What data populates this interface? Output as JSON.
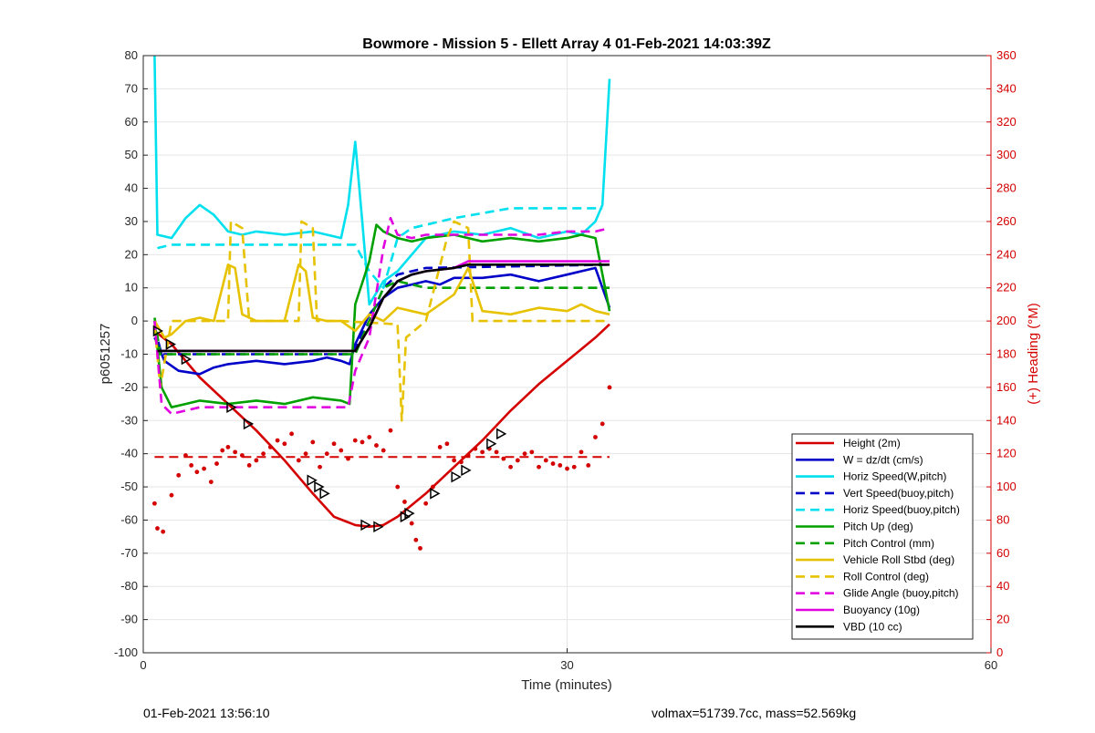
{
  "chart_data": {
    "type": "line",
    "title": "Bowmore - Mission 5 - Ellett Array 4 01-Feb-2021 14:03:39Z",
    "xlabel": "Time (minutes)",
    "ylabel": "p6051257",
    "y2label": "(+) Heading (°M)",
    "xlim": [
      0,
      60
    ],
    "ylim": [
      -100,
      80
    ],
    "y2lim": [
      0,
      360
    ],
    "xticks": [
      0,
      30,
      60
    ],
    "yticks": [
      80,
      70,
      60,
      50,
      40,
      30,
      20,
      10,
      0,
      -10,
      -20,
      -30,
      -40,
      -50,
      -60,
      -70,
      -80,
      -90,
      -100
    ],
    "y2ticks": [
      360,
      340,
      320,
      300,
      280,
      260,
      240,
      220,
      200,
      180,
      160,
      140,
      120,
      100,
      80,
      60,
      40,
      20,
      0
    ],
    "grid": true,
    "legend_position": "bottom-right",
    "series": [
      {
        "name": "Height (2m)",
        "color": "#d40000",
        "style": "solid",
        "x": [
          0.8,
          2,
          4,
          6,
          8,
          10,
          12,
          13.5,
          15,
          16,
          17,
          18,
          20,
          22,
          24,
          26,
          28,
          30,
          32,
          33
        ],
        "y": [
          -3,
          -7,
          -17,
          -25,
          -33,
          -42,
          -52,
          -59,
          -61.5,
          -62,
          -61.5,
          -59,
          -52,
          -44,
          -36,
          -27,
          -19,
          -12,
          -5,
          -1
        ]
      },
      {
        "name": "W = dz/dt (cm/s)",
        "color": "#0000c8",
        "style": "solid",
        "x": [
          0.8,
          1.5,
          2.5,
          4,
          5,
          6,
          8,
          10,
          12,
          13,
          14,
          14.6,
          15,
          16,
          17,
          18,
          19,
          20,
          21,
          22,
          24,
          26,
          28,
          30,
          31,
          32,
          33
        ],
        "y": [
          -5,
          -12,
          -15,
          -16,
          -14,
          -13,
          -12,
          -13,
          -12,
          -11,
          -12,
          -13,
          -7,
          2,
          7,
          10,
          11,
          12,
          11,
          13,
          13,
          14,
          12,
          14,
          15,
          16,
          4
        ]
      },
      {
        "name": "Horiz Speed(W,pitch)",
        "color": "#00e0ee",
        "style": "solid",
        "x": [
          0.8,
          1,
          2,
          3,
          4,
          5,
          6,
          7,
          8,
          10,
          12,
          14,
          14.5,
          15,
          15.5,
          16,
          17,
          18,
          19,
          20,
          22,
          24,
          26,
          28,
          30,
          31,
          32,
          32.5,
          33
        ],
        "y": [
          80,
          26,
          25,
          31,
          35,
          32,
          27,
          26,
          27,
          26,
          27,
          25,
          35,
          54,
          30,
          5,
          12,
          15,
          20,
          25,
          27,
          26,
          28,
          25,
          27,
          26,
          30,
          35,
          73
        ]
      },
      {
        "name": "Vert Speed(buoy,pitch)",
        "color": "#0000c8",
        "style": "dashed",
        "x": [
          0.8,
          1.3,
          14.5,
          15,
          16,
          17,
          18,
          19,
          20,
          33
        ],
        "y": [
          -2,
          -10,
          -10,
          -8,
          0,
          10,
          14,
          15,
          16,
          17
        ]
      },
      {
        "name": "Horiz Speed(buoy,pitch)",
        "color": "#00e0ee",
        "style": "dashed",
        "x": [
          1,
          2,
          15,
          16,
          17,
          18,
          19,
          20,
          22,
          26,
          30,
          32.5
        ],
        "y": [
          22,
          23,
          23,
          15,
          10,
          25,
          28,
          29,
          31,
          34,
          34,
          34
        ]
      },
      {
        "name": "Pitch Up (deg)",
        "color": "#00a000",
        "style": "solid",
        "x": [
          0.8,
          1.3,
          2,
          3,
          4,
          6,
          8,
          10,
          12,
          14,
          14.6,
          15,
          16,
          16.5,
          17,
          18,
          19,
          20,
          22,
          24,
          26,
          28,
          30,
          31,
          32,
          33
        ],
        "y": [
          0,
          -20,
          -26,
          -25,
          -24,
          -25,
          -24,
          -25,
          -23,
          -24,
          -25,
          5,
          18,
          29,
          27,
          25,
          24,
          25,
          26,
          24,
          25,
          24,
          25,
          26,
          25,
          3
        ]
      },
      {
        "name": "Pitch Control (mm)",
        "color": "#00a000",
        "style": "dashed",
        "x": [
          0.8,
          1.2,
          15,
          16,
          17,
          18,
          20,
          22,
          24,
          33
        ],
        "y": [
          1,
          -10,
          -10,
          0,
          10,
          12,
          10,
          10,
          10,
          10
        ]
      },
      {
        "name": "Vehicle Roll Stbd (deg)",
        "color": "#e6c200",
        "style": "solid",
        "x": [
          0.8,
          1.5,
          2,
          3,
          4,
          5,
          6,
          6.5,
          7,
          8,
          10,
          11,
          11.5,
          12,
          13,
          14,
          15,
          16,
          17,
          18,
          20,
          22,
          23,
          24,
          26,
          28,
          30,
          31,
          32,
          33
        ],
        "y": [
          0,
          -5,
          -4,
          0,
          1,
          0,
          17,
          16,
          2,
          0,
          0,
          17,
          15,
          1,
          0,
          0,
          -3,
          2,
          0,
          4,
          2,
          8,
          16,
          3,
          2,
          4,
          3,
          5,
          3,
          2
        ]
      },
      {
        "name": "Roll Control (deg)",
        "color": "#e6c200",
        "style": "dashed",
        "x": [
          0.8,
          1.2,
          2,
          6,
          6.2,
          7,
          7.5,
          11,
          11.2,
          12,
          12.3,
          14,
          18,
          18.3,
          18.6,
          20,
          21.5,
          22,
          23,
          23.3,
          24,
          30,
          32,
          33
        ],
        "y": [
          -1,
          -20,
          0,
          0,
          30,
          28,
          0,
          0,
          30,
          28,
          0,
          0,
          -1,
          -30,
          -5,
          0,
          25,
          30,
          28,
          0,
          0,
          0,
          0,
          0
        ]
      },
      {
        "name": "Glide Angle (buoy,pitch)",
        "color": "#e000e0",
        "style": "dashed",
        "x": [
          0.8,
          1.3,
          2,
          4,
          8,
          12,
          14.5,
          15,
          16,
          17,
          17.5,
          18,
          19,
          20,
          22,
          24,
          26,
          28,
          30,
          32,
          33
        ],
        "y": [
          0,
          -25,
          -28,
          -26,
          -26,
          -26,
          -26,
          -15,
          -5,
          22,
          31,
          26,
          25,
          26,
          26,
          26,
          26,
          26,
          27,
          27,
          28
        ]
      },
      {
        "name": "Buoyancy (10g)",
        "color": "#e000e0",
        "style": "solid",
        "x": [
          1,
          15,
          16,
          17,
          18,
          19,
          20,
          22,
          23,
          33
        ],
        "y": [
          -9,
          -9,
          -2,
          7,
          12,
          14,
          15,
          16,
          18,
          18
        ]
      },
      {
        "name": "VBD (10 cc)",
        "color": "#000000",
        "style": "solid",
        "x": [
          1,
          15,
          16,
          17,
          18,
          19,
          20,
          22,
          23,
          33
        ],
        "y": [
          -9,
          -9,
          -2,
          7,
          12,
          14,
          15,
          16,
          17,
          17
        ]
      }
    ],
    "heading": {
      "axis": "right",
      "color": "#d40000",
      "target": 118,
      "target_range_x": [
        0.8,
        33
      ],
      "points_x": [
        0.8,
        1.0,
        1.4,
        2.0,
        2.5,
        3.0,
        3.4,
        3.8,
        4.3,
        4.8,
        5.2,
        5.6,
        6.0,
        6.5,
        7.0,
        7.5,
        8.0,
        8.5,
        9.0,
        9.5,
        10.0,
        10.5,
        11.0,
        11.5,
        12.0,
        12.5,
        13.0,
        13.5,
        14.0,
        14.5,
        15.0,
        15.5,
        16.0,
        16.5,
        17.0,
        17.5,
        18.0,
        18.5,
        19.0,
        19.3,
        19.6,
        20.0,
        20.5,
        21.0,
        21.5,
        22.0,
        22.5,
        23.0,
        23.5,
        24.0,
        24.5,
        25.0,
        25.5,
        26.0,
        26.5,
        27.0,
        27.5,
        28.0,
        28.5,
        29.0,
        29.5,
        30.0,
        30.5,
        31.0,
        31.5,
        32.0,
        32.5,
        33.0
      ],
      "points_y": [
        90,
        75,
        73,
        95,
        107,
        119,
        113,
        109,
        111,
        103,
        114,
        122,
        124,
        121,
        119,
        113,
        116,
        120,
        124,
        128,
        126,
        132,
        116,
        120,
        127,
        112,
        120,
        126,
        122,
        117,
        128,
        127,
        130,
        125,
        122,
        134,
        100,
        91,
        78,
        68,
        63,
        90,
        100,
        124,
        126,
        116,
        115,
        119,
        123,
        121,
        123,
        121,
        117,
        112,
        116,
        120,
        121,
        112,
        116,
        114,
        113,
        111,
        112,
        121,
        113,
        130,
        138,
        160
      ]
    },
    "markers": {
      "color": "#000000",
      "x": [
        1.0,
        1.9,
        3.0,
        6.2,
        7.4,
        11.9,
        12.4,
        12.8,
        15.7,
        16.6,
        18.5,
        18.8,
        20.6,
        22.1,
        22.8,
        24.6,
        25.3
      ],
      "y": [
        -3,
        -7,
        -11.5,
        -26,
        -31,
        -48,
        -50,
        -52,
        -61.5,
        -62,
        -59,
        -58,
        -52,
        -47,
        -45,
        -37,
        -34
      ]
    }
  },
  "footer": {
    "start_time": "01-Feb-2021 13:56:10",
    "stats": "volmax=51739.7cc, mass=52.569kg"
  }
}
